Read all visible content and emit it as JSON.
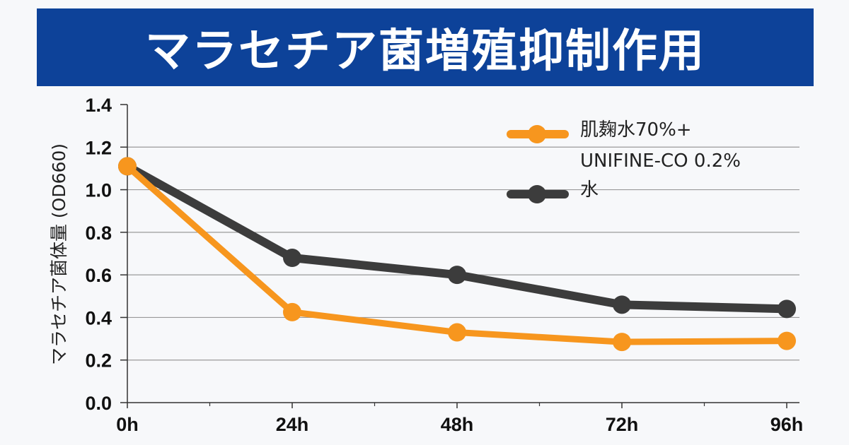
{
  "title": "マラセチア菌増殖抑制作用",
  "chart_data": {
    "type": "line",
    "title": "",
    "xlabel": "",
    "ylabel": "マラセチア菌体量 (OD660)",
    "categories": [
      "0h",
      "24h",
      "48h",
      "72h",
      "96h"
    ],
    "ylim": [
      0,
      1.4
    ],
    "yticks": [
      "0.0",
      "0.2",
      "0.4",
      "0.6",
      "0.8",
      "1.0",
      "1.2",
      "1.4"
    ],
    "grid": true,
    "legend_position": "top-right",
    "series": [
      {
        "name_line1": "肌麹水70%+",
        "name_line2": "UNIFINE-CO 0.2%",
        "color": "#f7961e",
        "values": [
          1.11,
          0.425,
          0.33,
          0.285,
          0.29
        ]
      },
      {
        "name_line1": "水",
        "name_line2": "",
        "color": "#3c3c3c",
        "values": [
          1.11,
          0.68,
          0.6,
          0.46,
          0.44
        ]
      }
    ]
  }
}
